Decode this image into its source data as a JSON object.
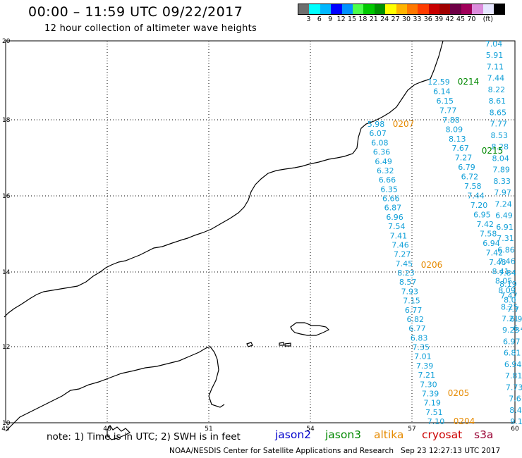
{
  "header": {
    "title": "00:00 – 11:59 UTC 09/22/2017",
    "subtitle": "12 hour collection of altimeter wave heights"
  },
  "color_scale": {
    "colors": [
      "#6e6e6e",
      "#00ffff",
      "#00b7ff",
      "#0000ff",
      "#0091ff",
      "#4cff4c",
      "#00c800",
      "#009000",
      "#ffff00",
      "#ffb400",
      "#ff7800",
      "#ff3c00",
      "#c80000",
      "#a00000",
      "#6e0046",
      "#a0005a",
      "#dc8cdc",
      "#e6e6ff",
      "#000000"
    ],
    "labels": [
      "3",
      "6",
      "9",
      "12",
      "15",
      "18",
      "21",
      "24",
      "27",
      "30",
      "33",
      "36",
      "39",
      "42",
      "45",
      "70",
      "(ft)"
    ]
  },
  "axes": {
    "lon_labels": [
      "45",
      "48",
      "51",
      "54",
      "57",
      "60"
    ],
    "lat_labels": [
      "20",
      "18",
      "16",
      "14",
      "12",
      "10"
    ]
  },
  "passes": [
    {
      "id": "0214",
      "satellite": "jason3",
      "color": "#008800"
    },
    {
      "id": "0215",
      "satellite": "jason3",
      "color": "#008800"
    },
    {
      "id": "0207",
      "satellite": "altika",
      "color": "#e68a00"
    },
    {
      "id": "0206",
      "satellite": "altika",
      "color": "#e68a00"
    },
    {
      "id": "0205",
      "satellite": "altika",
      "color": "#e68a00"
    },
    {
      "id": "0204",
      "satellite": "altika",
      "color": "#e68a00"
    }
  ],
  "tracks": {
    "track_a": [
      "7.04",
      "5.91",
      "7.11",
      "7.44",
      "8.22",
      "8.61",
      "8.65",
      "7.77",
      "8.53",
      "8.28",
      "8.04",
      "7.89",
      "8.33",
      "7.97",
      "7.24",
      "6.49",
      "6.91",
      "7.31",
      "6.86",
      "7.46",
      "7.84",
      "8.19",
      "7.47",
      "8.25",
      "7.21",
      "9.23",
      "6.97",
      "6.81",
      "6.94",
      "7.81",
      "7.73",
      "7.6",
      "8.4",
      "9.1"
    ],
    "track_b": [
      "12.59",
      "6.14",
      "6.15",
      "7.77",
      "7.88",
      "8.09",
      "8.13",
      "7.67",
      "7.27",
      "6.79",
      "6.72",
      "7.58",
      "7.44",
      "7.20",
      "6.95",
      "7.42",
      "7.58",
      "6.94",
      "7.42",
      "7.48",
      "8.41",
      "8.05",
      "8.09",
      "8.0",
      "7.7",
      "6.9",
      "6.4"
    ],
    "track_c": [
      "5.98",
      "6.07",
      "6.08",
      "6.36",
      "6.49",
      "6.32",
      "6.66",
      "6.35",
      "6.66",
      "6.87",
      "6.96",
      "7.54",
      "7.41",
      "7.46",
      "7.27",
      "7.45",
      "8.23",
      "8.57",
      "7.93",
      "7.15",
      "6.77",
      "6.82",
      "6.77",
      "6.83",
      "7.35",
      "7.01",
      "7.39",
      "7.21",
      "7.30",
      "7.39",
      "7.19",
      "7.51",
      "7.10"
    ]
  },
  "footer": {
    "note": "note: 1) Time is in UTC; 2) SWH is in feet",
    "legend": [
      {
        "name": "jason2",
        "color": "#0000cc"
      },
      {
        "name": "jason3",
        "color": "#008800"
      },
      {
        "name": "altika",
        "color": "#e68a00"
      },
      {
        "name": "cryosat",
        "color": "#cc0000"
      },
      {
        "name": "s3a",
        "color": "#990033"
      }
    ],
    "credit": "NOAA/NESDIS Center for Satellite Applications and Research   Sep 23 12:27:13 UTC 2017"
  }
}
